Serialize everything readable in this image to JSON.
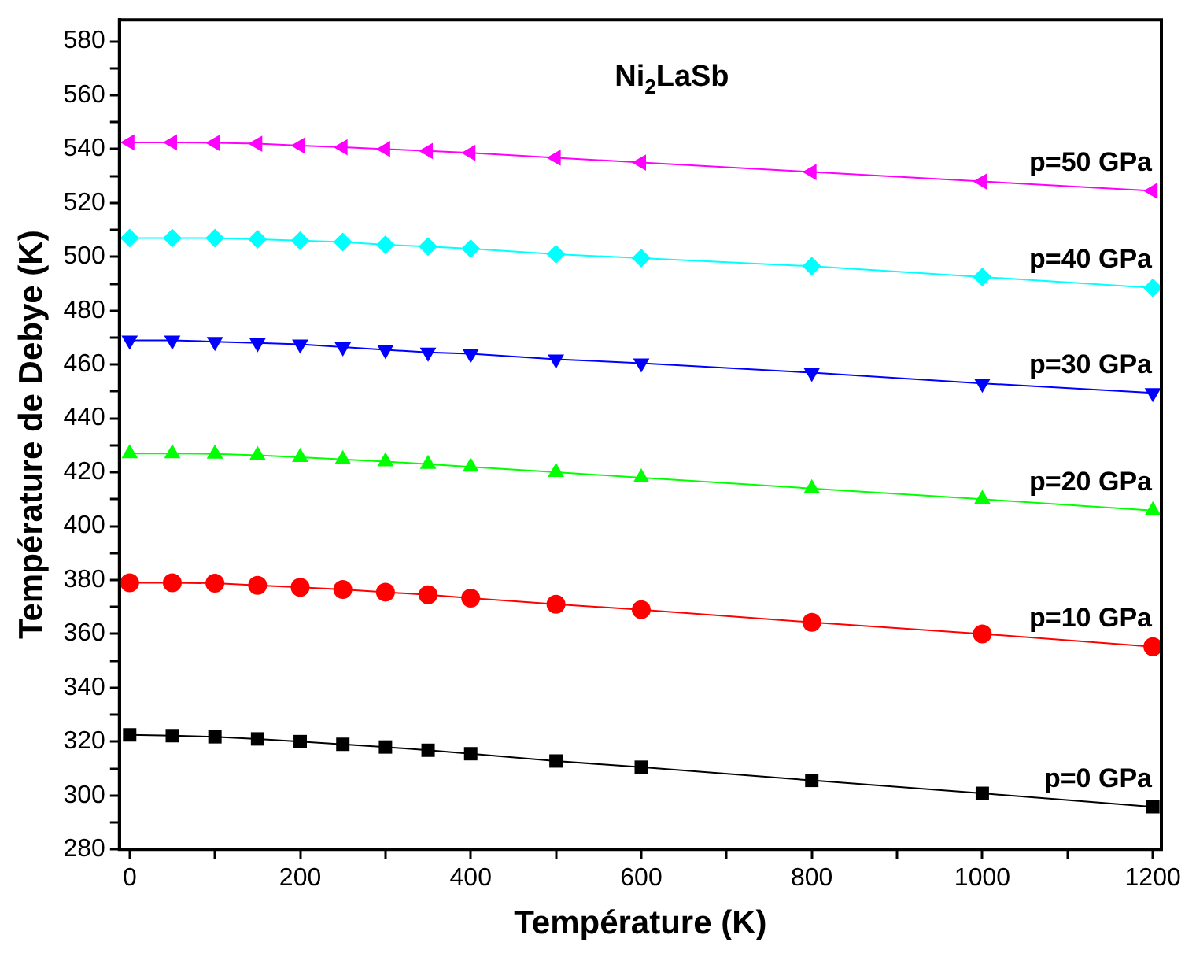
{
  "chart_data": {
    "type": "line",
    "title": "Ni$_{2}$LaSb",
    "xlabel": "Température (K)",
    "ylabel": "Température de Debye (K)",
    "x": [
      0,
      50,
      100,
      150,
      200,
      250,
      300,
      350,
      400,
      500,
      600,
      800,
      1000,
      1200
    ],
    "xlim": [
      -12,
      1210
    ],
    "xticks": [
      0,
      {
        "value": 100,
        "label": null
      },
      200,
      {
        "value": 300,
        "label": null
      },
      400,
      {
        "value": 500,
        "label": null
      },
      600,
      {
        "value": 700,
        "label": null
      },
      800,
      {
        "value": 900,
        "label": null
      },
      1000,
      {
        "value": 1100,
        "label": null
      },
      1200
    ],
    "ylim": [
      280,
      588
    ],
    "yticks": [
      280,
      {
        "value": 290,
        "label": null
      },
      300,
      {
        "value": 310,
        "label": null
      },
      320,
      {
        "value": 330,
        "label": null
      },
      340,
      {
        "value": 350,
        "label": null
      },
      360,
      {
        "value": 370,
        "label": null
      },
      380,
      {
        "value": 390,
        "label": null
      },
      400,
      {
        "value": 410,
        "label": null
      },
      420,
      {
        "value": 430,
        "label": null
      },
      440,
      {
        "value": 450,
        "label": null
      },
      460,
      {
        "value": 470,
        "label": null
      },
      480,
      {
        "value": 490,
        "label": null
      },
      500,
      {
        "value": 510,
        "label": null
      },
      520,
      {
        "value": 530,
        "label": null
      },
      540,
      {
        "value": 550,
        "label": null
      },
      560,
      {
        "value": 570,
        "label": null
      },
      580
    ],
    "grid": false,
    "legend": false,
    "line_style": "solid",
    "series": [
      {
        "name": "p=0 GPa",
        "color": "#000000",
        "marker": "square",
        "values": [
          322.5,
          322.2,
          321.8,
          321,
          320,
          319,
          318,
          316.8,
          315.5,
          312.8,
          310.5,
          305.6,
          300.8,
          295.8
        ]
      },
      {
        "name": "p=10 GPa",
        "color": "#ff0000",
        "marker": "circle",
        "values": [
          379,
          379,
          378.8,
          378,
          377.3,
          376.5,
          375.5,
          374.5,
          373.3,
          371,
          369,
          364.3,
          360,
          355.2
        ]
      },
      {
        "name": "p=20 GPa",
        "color": "#00ff00",
        "marker": "triangle",
        "values": [
          427,
          427,
          426.8,
          426.3,
          425.6,
          424.8,
          424,
          423,
          422,
          420,
          418,
          414,
          410,
          405.8
        ]
      },
      {
        "name": "p=30 GPa",
        "color": "#0000ff",
        "marker": "triangle-down",
        "values": [
          469,
          469,
          468.5,
          468,
          467.5,
          466.5,
          465.5,
          464.5,
          464,
          462,
          460.5,
          457,
          453,
          449.5
        ]
      },
      {
        "name": "p=40 GPa",
        "color": "#00ffff",
        "marker": "diamond",
        "values": [
          507,
          507,
          507,
          506.5,
          506,
          505.5,
          504.5,
          503.8,
          503,
          501,
          499.5,
          496.5,
          492.5,
          488.5
        ]
      },
      {
        "name": "p=50 GPa",
        "color": "#ff00ff",
        "marker": "triangle-left",
        "values": [
          542.5,
          542.5,
          542.3,
          542,
          541.3,
          540.7,
          540,
          539.3,
          538.6,
          536.8,
          535,
          531.5,
          528,
          524.5
        ]
      }
    ]
  }
}
